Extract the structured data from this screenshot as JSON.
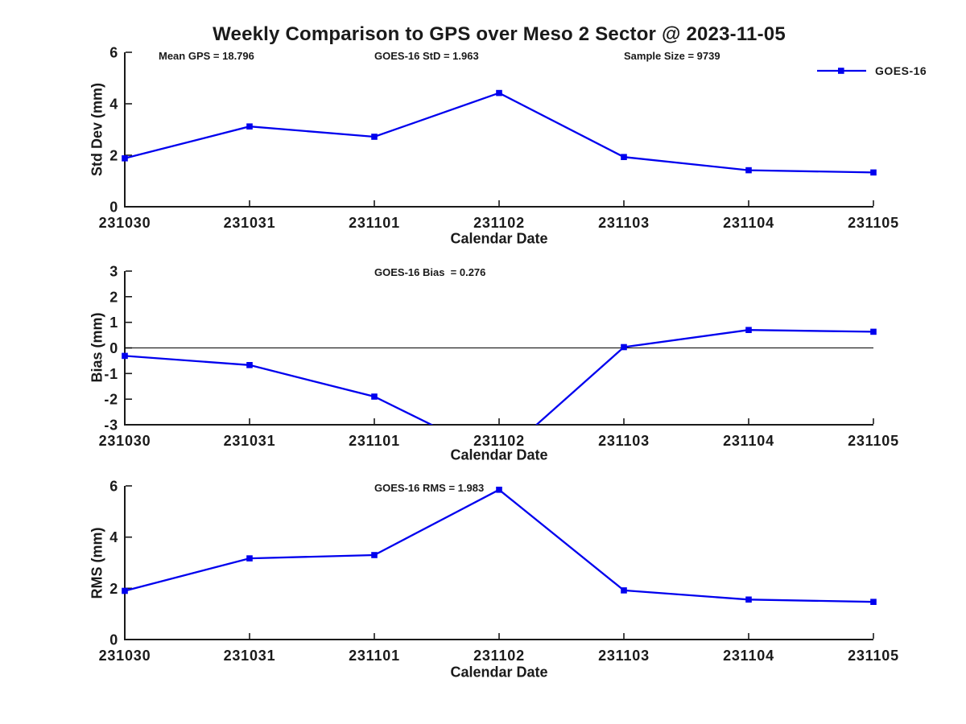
{
  "figure": {
    "title": "Weekly Comparison to GPS over Meso 2 Sector @ 2023-11-05",
    "legend": {
      "label": "GOES-16"
    },
    "colors": {
      "line": "#0000EE",
      "axis": "#1a1a1a",
      "text": "#1a1a1a",
      "zero_line": "#000000"
    }
  },
  "chart_data": [
    {
      "type": "line",
      "subplot": "std-dev",
      "annotations": [
        "Mean GPS = 18.796",
        "GOES-16 StD = 1.963",
        "Sample Size = 9739"
      ],
      "x_categories": [
        "231030",
        "231031",
        "231101",
        "231102",
        "231103",
        "231104",
        "231105"
      ],
      "series": [
        {
          "name": "GOES-16",
          "values": [
            1.88,
            3.12,
            2.72,
            4.42,
            1.93,
            1.42,
            1.33
          ]
        }
      ],
      "xlabel": "Calendar Date",
      "ylabel": "Std Dev (mm)",
      "ylim": [
        0,
        6
      ],
      "yticks": [
        0,
        2,
        4,
        6
      ],
      "zero_line": false,
      "legend_position": "top-right",
      "grid": false
    },
    {
      "type": "line",
      "subplot": "bias",
      "annotations": [
        "GOES-16 Bias  = 0.276"
      ],
      "x_categories": [
        "231030",
        "231031",
        "231101",
        "231102",
        "231103",
        "231104",
        "231105"
      ],
      "series": [
        {
          "name": "GOES-16",
          "values": [
            -0.31,
            -0.67,
            -1.9,
            -4.3,
            0.03,
            0.7,
            0.63
          ]
        }
      ],
      "xlabel": "Calendar Date",
      "ylabel": "Bias (mm)",
      "ylim": [
        -3,
        3
      ],
      "yticks": [
        -3,
        -2,
        -1,
        0,
        1,
        2,
        3
      ],
      "zero_line": true,
      "legend_position": "none",
      "grid": false
    },
    {
      "type": "line",
      "subplot": "rms",
      "annotations": [
        "GOES-16 RMS = 1.983"
      ],
      "x_categories": [
        "231030",
        "231031",
        "231101",
        "231102",
        "231103",
        "231104",
        "231105"
      ],
      "series": [
        {
          "name": "GOES-16",
          "values": [
            1.9,
            3.17,
            3.3,
            5.85,
            1.92,
            1.56,
            1.47
          ]
        }
      ],
      "xlabel": "Calendar Date",
      "ylabel": "RMS (mm)",
      "ylim": [
        0,
        6
      ],
      "yticks": [
        0,
        2,
        4,
        6
      ],
      "zero_line": false,
      "legend_position": "none",
      "grid": false
    }
  ]
}
